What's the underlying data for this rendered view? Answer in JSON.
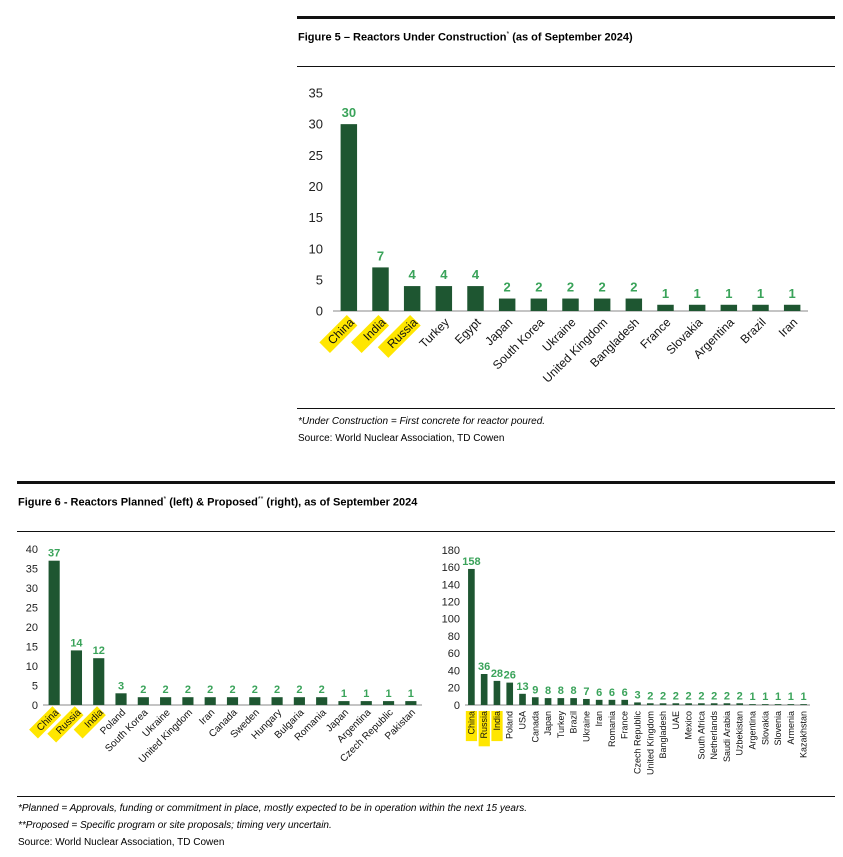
{
  "figure5": {
    "title_prefix": "Figure 5 – Reactors Under Construction",
    "title_mark": "*",
    "title_suffix": " (as of September 2024)",
    "footnote": "*Under Construction = First concrete for reactor poured.",
    "source": "Source: World Nuclear Association, TD Cowen"
  },
  "figure6": {
    "title_prefix": "Figure 6 - Reactors Planned",
    "title_mark1": "*",
    "title_mid": " (left) & Proposed",
    "title_mark2": "**",
    "title_suffix": " (right), as of September 2024",
    "footnote1": "*Planned = Approvals, funding or commitment in place, mostly expected to be in operation within the next 15 years.",
    "footnote2": "**Proposed = Specific program or site proposals; timing very uncertain.",
    "source": "Source: World Nuclear Association, TD Cowen"
  },
  "colors": {
    "bar": "#1e5631",
    "label": "#3aa35a",
    "highlight": "#ffe600",
    "axis": "#888888"
  },
  "chart_data": [
    {
      "type": "bar",
      "title": "Figure 5 – Reactors Under Construction* (as of September 2024)",
      "categories": [
        "China",
        "India",
        "Russia",
        "Turkey",
        "Egypt",
        "Japan",
        "South Korea",
        "Ukraine",
        "United Kingdom",
        "Bangladesh",
        "France",
        "Slovakia",
        "Argentina",
        "Brazil",
        "Iran"
      ],
      "values": [
        30,
        7,
        4,
        4,
        4,
        2,
        2,
        2,
        2,
        2,
        1,
        1,
        1,
        1,
        1
      ],
      "highlighted": [
        "China",
        "India",
        "Russia"
      ],
      "ylim": [
        0,
        35
      ],
      "yticks": [
        0,
        5,
        10,
        15,
        20,
        25,
        30,
        35
      ],
      "grid": false,
      "data_labels": true
    },
    {
      "type": "bar",
      "title": "Reactors Planned",
      "categories": [
        "China",
        "Russia",
        "India",
        "Poland",
        "South Korea",
        "Ukraine",
        "United Kingdom",
        "Iran",
        "Canada",
        "Sweden",
        "Hungary",
        "Bulgaria",
        "Romania",
        "Japan",
        "Argentina",
        "Czech Republic",
        "Pakistan"
      ],
      "values": [
        37,
        14,
        12,
        3,
        2,
        2,
        2,
        2,
        2,
        2,
        2,
        2,
        2,
        1,
        1,
        1,
        1
      ],
      "highlighted": [
        "China",
        "Russia",
        "India"
      ],
      "ylim": [
        0,
        40
      ],
      "yticks": [
        0,
        5,
        10,
        15,
        20,
        25,
        30,
        35,
        40
      ],
      "grid": false,
      "data_labels": true
    },
    {
      "type": "bar",
      "title": "Reactors Proposed",
      "categories": [
        "China",
        "Russia",
        "India",
        "Poland",
        "USA",
        "Canada",
        "Japan",
        "Turkey",
        "Brazil",
        "Ukraine",
        "Iran",
        "Romania",
        "France",
        "Czech Republic",
        "United Kingdom",
        "Bangladesh",
        "UAE",
        "Mexico",
        "South Africa",
        "Netherlands",
        "Saudi Arabia",
        "Uzbekistan",
        "Argentina",
        "Slovakia",
        "Slovenia",
        "Armenia",
        "Kazakhstan"
      ],
      "values": [
        158,
        36,
        28,
        26,
        13,
        9,
        8,
        8,
        8,
        7,
        6,
        6,
        6,
        3,
        2,
        2,
        2,
        2,
        2,
        2,
        2,
        2,
        1,
        1,
        1,
        1,
        1
      ],
      "highlighted": [
        "China",
        "Russia",
        "India"
      ],
      "ylim": [
        0,
        180
      ],
      "yticks": [
        0,
        20,
        40,
        60,
        80,
        100,
        120,
        140,
        160,
        180
      ],
      "grid": false,
      "data_labels": true
    }
  ]
}
